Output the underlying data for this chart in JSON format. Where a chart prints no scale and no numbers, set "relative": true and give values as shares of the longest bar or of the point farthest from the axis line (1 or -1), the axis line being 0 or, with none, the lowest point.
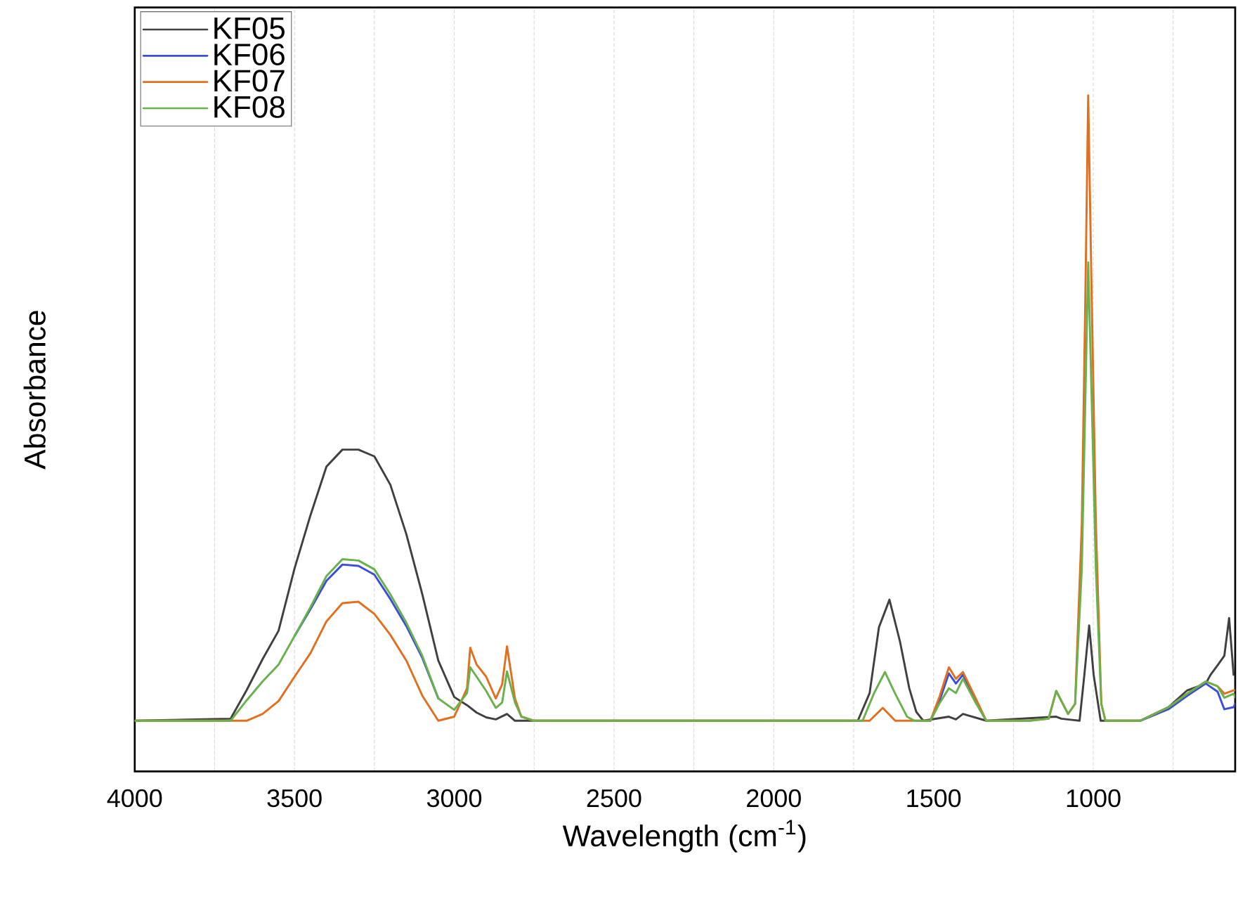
{
  "chart_data": {
    "type": "line",
    "xlabel": "Wavelength (cm$^{-1}$)",
    "ylabel": "Absorbance",
    "relative": true,
    "xlim": [
      4000,
      556
    ],
    "xticks": [
      4000,
      {
        "value": 3750,
        "label": null
      },
      3500,
      {
        "value": 3250,
        "label": null
      },
      3000,
      {
        "value": 2750,
        "label": null
      },
      2500,
      {
        "value": 2250,
        "label": null
      },
      2000,
      {
        "value": 1750,
        "label": null
      },
      1500,
      {
        "value": 1250,
        "label": null
      },
      1000,
      {
        "value": 750,
        "label": null
      }
    ],
    "grid": "x",
    "legend": "top left",
    "marker": "none",
    "line_style": "solid",
    "series": [
      {
        "name": "KF05",
        "color": "#404040",
        "x": [
          4000,
          3700,
          3650,
          3600,
          3550,
          3500,
          3450,
          3400,
          3350,
          3300,
          3250,
          3200,
          3150,
          3100,
          3050,
          3000,
          2960,
          2930,
          2900,
          2870,
          2835,
          2810,
          2750,
          1737,
          1700,
          1671,
          1638,
          1605,
          1576,
          1554,
          1532,
          1452,
          1430,
          1408,
          1335,
          1116,
          1100,
          1043,
          1028,
          1013,
          999,
          977,
          853,
          765,
          706,
          648,
          633,
          611,
          590,
          575,
          561
        ],
        "values": [
          0.075,
          0.078,
          0.12,
          0.166,
          0.208,
          0.3,
          0.379,
          0.451,
          0.476,
          0.476,
          0.466,
          0.424,
          0.351,
          0.262,
          0.164,
          0.11,
          0.098,
          0.087,
          0.08,
          0.077,
          0.085,
          0.075,
          0.075,
          0.075,
          0.116,
          0.213,
          0.254,
          0.192,
          0.123,
          0.088,
          0.075,
          0.081,
          0.077,
          0.085,
          0.075,
          0.081,
          0.078,
          0.075,
          0.143,
          0.216,
          0.143,
          0.075,
          0.075,
          0.095,
          0.12,
          0.13,
          0.143,
          0.157,
          0.171,
          0.227,
          0.143
        ]
      },
      {
        "name": "KF06",
        "color": "#3b4fd6",
        "x": [
          3500,
          3450,
          3400,
          3350,
          3300,
          3250,
          3200,
          3150,
          3100,
          3050,
          3000,
          2960,
          2950,
          2930,
          2900,
          2870,
          2850,
          2835,
          2810,
          2790,
          2750,
          1722,
          1686,
          1652,
          1621,
          1583,
          1560,
          1510,
          1481,
          1452,
          1430,
          1408,
          1371,
          1335,
          1200,
          1140,
          1116,
          1079,
          1057,
          1036,
          1025,
          1016,
          1005,
          992,
          975,
          962,
          853,
          765,
          706,
          648,
          611,
          590,
          561,
          556
        ],
        "values": [
          0.2,
          0.24,
          0.282,
          0.306,
          0.304,
          0.291,
          0.255,
          0.215,
          0.168,
          0.108,
          null,
          null,
          null,
          null,
          null,
          null,
          null,
          null,
          null,
          null,
          null,
          null,
          null,
          null,
          null,
          null,
          null,
          0.075,
          0.105,
          0.145,
          0.13,
          0.143,
          0.106,
          0.075,
          null,
          null,
          null,
          null,
          null,
          null,
          null,
          null,
          null,
          null,
          null,
          null,
          0.075,
          0.092,
          0.112,
          0.13,
          0.118,
          0.092,
          0.095,
          0.1
        ]
      },
      {
        "name": "KF07",
        "color": "#e07020",
        "x": [
          4000,
          3650,
          3600,
          3550,
          3500,
          3450,
          3400,
          3350,
          3300,
          3250,
          3200,
          3150,
          3100,
          3050,
          3000,
          2960,
          2950,
          2930,
          2900,
          2870,
          2850,
          2835,
          2810,
          2790,
          2750,
          1700,
          1659,
          1620,
          1583,
          1510,
          1481,
          1452,
          1430,
          1408,
          1371,
          1335,
          1200,
          1140,
          1116,
          1079,
          1057,
          1036,
          1025,
          1016,
          1005,
          992,
          975,
          962,
          853,
          765,
          706,
          648,
          611,
          590,
          561,
          556
        ],
        "values": [
          0.075,
          0.075,
          0.085,
          0.104,
          0.14,
          0.175,
          0.222,
          0.249,
          0.251,
          0.233,
          0.202,
          0.164,
          0.112,
          0.075,
          0.081,
          0.123,
          0.183,
          0.158,
          0.14,
          0.108,
          0.129,
          0.185,
          0.108,
          0.081,
          0.075,
          0.075,
          0.094,
          0.075,
          0.075,
          0.075,
          0.111,
          0.154,
          0.137,
          0.147,
          0.111,
          0.075,
          0.075,
          0.078,
          0.119,
          0.085,
          0.1,
          0.366,
          0.7,
          1,
          0.7,
          0.366,
          0.1,
          0.075,
          0.075,
          0.095,
          0.115,
          0.133,
          0.126,
          0.115,
          0.12,
          0.12
        ]
      },
      {
        "name": "KF08",
        "color": "#6ab04c",
        "x": [
          4000,
          3700,
          3650,
          3600,
          3550,
          3500,
          3450,
          3400,
          3350,
          3300,
          3250,
          3200,
          3150,
          3100,
          3050,
          3000,
          2960,
          2950,
          2930,
          2900,
          2870,
          2850,
          2835,
          2810,
          2790,
          2750,
          1722,
          1686,
          1652,
          1621,
          1583,
          1560,
          1510,
          1481,
          1452,
          1430,
          1408,
          1371,
          1335,
          1200,
          1140,
          1116,
          1079,
          1057,
          1036,
          1025,
          1016,
          1005,
          992,
          975,
          962,
          853,
          765,
          706,
          648,
          611,
          590,
          561,
          556
        ],
        "values": [
          0.075,
          0.075,
          0.105,
          0.133,
          0.158,
          0.2,
          0.243,
          0.289,
          0.314,
          0.312,
          0.299,
          0.262,
          0.22,
          0.171,
          0.108,
          0.091,
          0.116,
          0.154,
          0.14,
          0.119,
          0.094,
          0.102,
          0.148,
          0.102,
          0.081,
          0.075,
          0.075,
          0.116,
          0.147,
          0.116,
          0.081,
          0.075,
          0.075,
          0.101,
          0.123,
          0.116,
          0.137,
          0.104,
          0.075,
          0.075,
          0.078,
          0.119,
          0.085,
          0.1,
          0.3,
          0.55,
          0.753,
          0.55,
          0.3,
          0.1,
          0.075,
          0.075,
          0.095,
          0.115,
          0.133,
          0.126,
          0.109,
          0.115,
          0.11
        ]
      }
    ]
  }
}
